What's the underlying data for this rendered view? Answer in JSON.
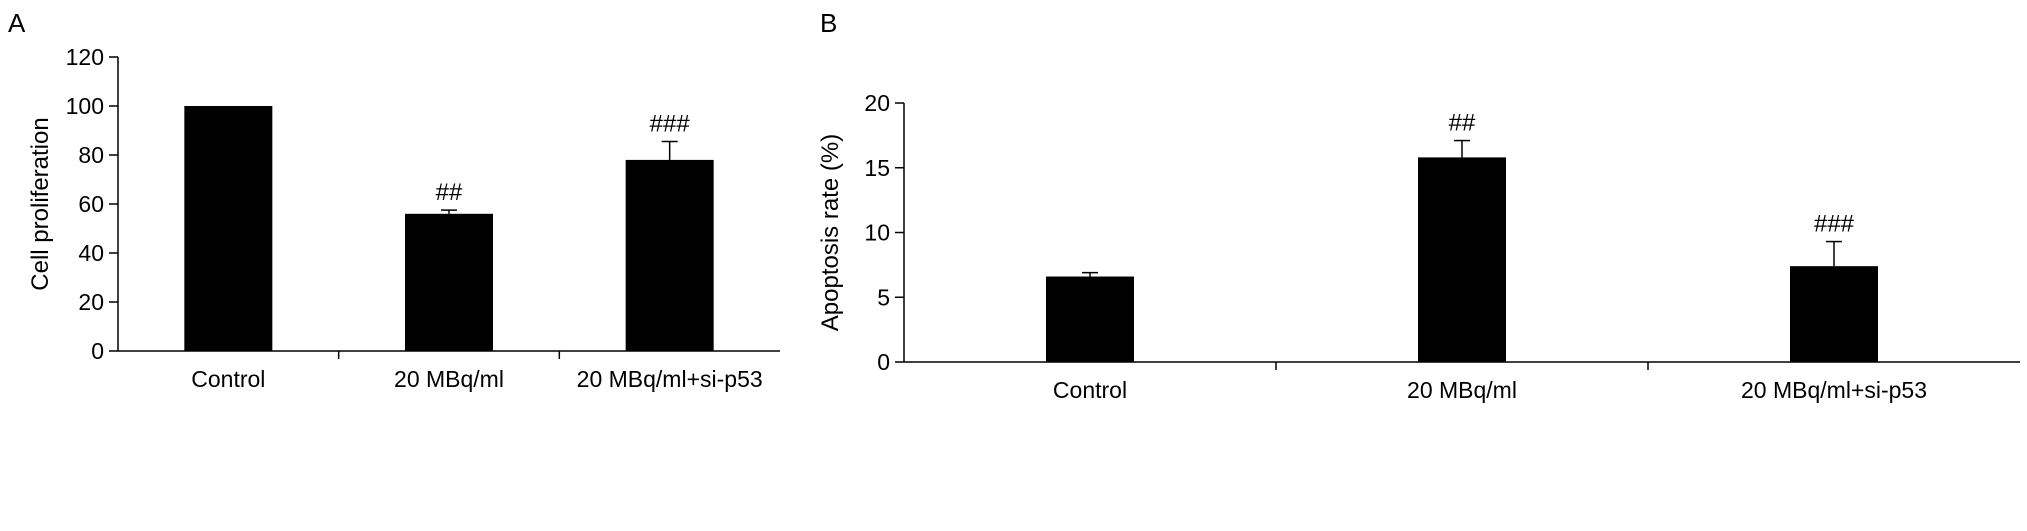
{
  "chart_data": [
    {
      "panel_label": "A",
      "type": "bar",
      "ylabel": "Cell proliferation",
      "xlabel": "",
      "ylim": [
        0,
        120
      ],
      "yticks": [
        0,
        20,
        40,
        60,
        80,
        100,
        120
      ],
      "categories": [
        "Control",
        "20 MBq/ml",
        "20 MBq/ml+si-p53"
      ],
      "values": [
        100,
        56,
        78
      ],
      "errors": [
        0,
        1.5,
        7.5
      ],
      "annotations": [
        "",
        "##",
        "###"
      ],
      "bar_color": "#000000",
      "grid": false,
      "legend": "none"
    },
    {
      "panel_label": "B",
      "type": "bar",
      "ylabel": "Apoptosis rate (%)",
      "xlabel": "",
      "ylim": [
        0,
        20
      ],
      "yticks": [
        0,
        5,
        10,
        15,
        20
      ],
      "categories": [
        "Control",
        "20 MBq/ml",
        "20 MBq/ml+si-p53"
      ],
      "values": [
        6.6,
        15.8,
        7.4
      ],
      "errors": [
        0.3,
        1.3,
        1.9
      ],
      "annotations": [
        "",
        "##",
        "###"
      ],
      "bar_color": "#000000",
      "grid": false,
      "legend": "none"
    }
  ]
}
